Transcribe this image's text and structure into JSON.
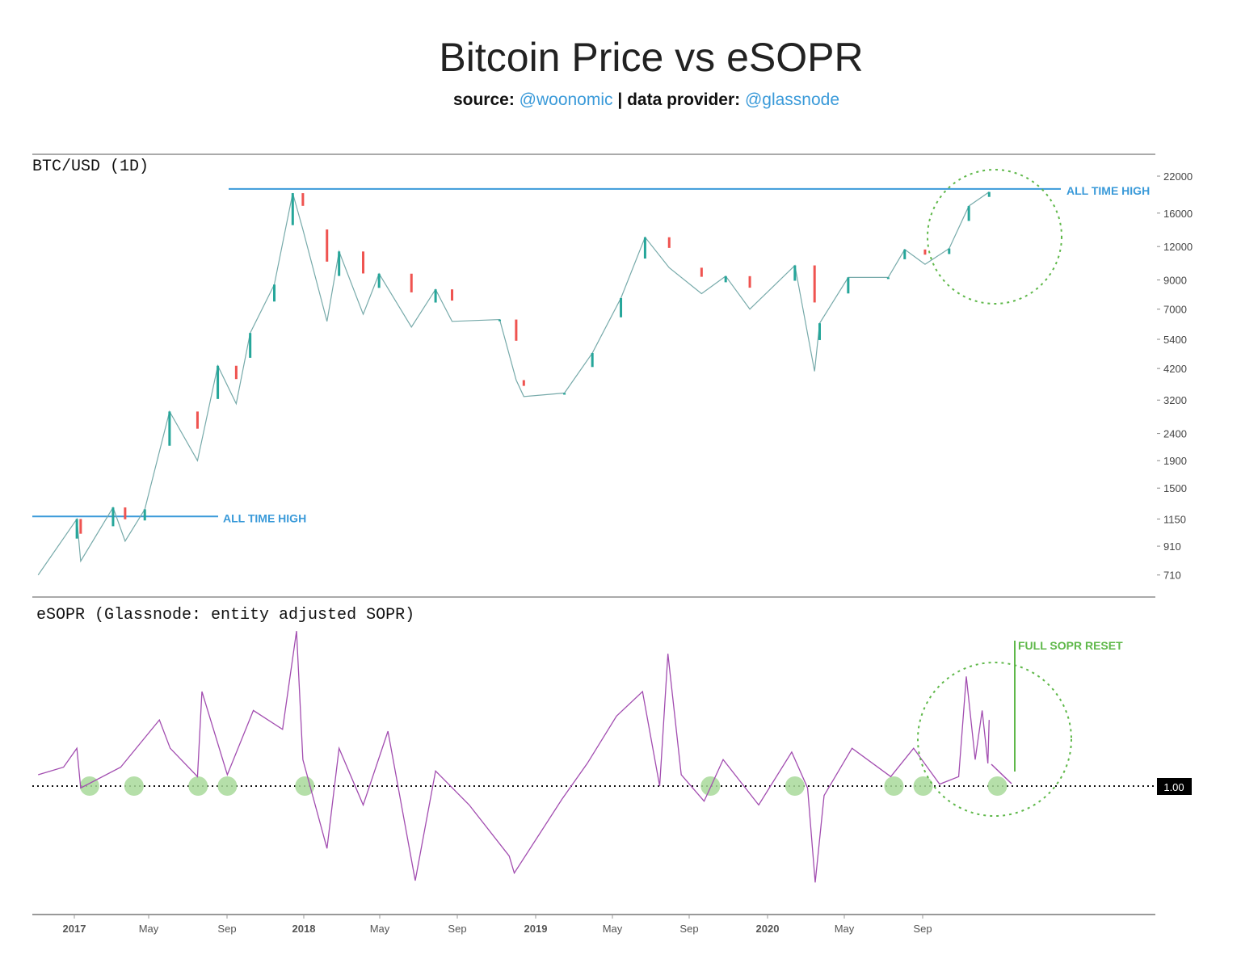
{
  "title": "Bitcoin Price vs eSOPR",
  "subtitle": {
    "source_label": "source:",
    "source_handle": "@woonomic",
    "separator": "|",
    "provider_label": "data provider:",
    "provider_handle": "@glassnode"
  },
  "colors": {
    "up": "#26a69a",
    "down": "#ef5350",
    "ath": "#3a9ad9",
    "esopr": "#a24db0",
    "annotation": "#5fb84a",
    "link": "#3a9ad9"
  },
  "chart_data": [
    {
      "type": "line",
      "title": "BTC/USD (1D)",
      "scale": "log",
      "ylim": [
        650,
        23000
      ],
      "y_ticks": [
        22000,
        16000,
        12000,
        9000,
        7000,
        5400,
        4200,
        3200,
        2400,
        1900,
        1500,
        1150,
        910,
        710
      ],
      "x_ticks": [
        "2017",
        "May",
        "Sep",
        "2018",
        "May",
        "Sep",
        "2019",
        "May",
        "Sep",
        "2020",
        "May",
        "Sep"
      ],
      "grid": false,
      "series": [
        {
          "x": [
            "2016-11-05",
            "2017-01-05",
            "2017-01-11",
            "2017-03-03",
            "2017-03-22",
            "2017-04-22",
            "2017-05-31",
            "2017-07-14",
            "2017-08-15",
            "2017-09-13",
            "2017-10-05",
            "2017-11-12",
            "2017-12-11",
            "2017-12-27",
            "2018-02-03",
            "2018-02-22",
            "2018-04-01",
            "2018-04-26",
            "2018-06-16",
            "2018-07-24",
            "2018-08-19",
            "2018-11-02",
            "2018-11-28",
            "2018-12-10",
            "2019-02-12",
            "2019-03-28",
            "2019-05-12",
            "2019-06-19",
            "2019-07-27",
            "2019-09-16",
            "2019-10-24",
            "2019-12-01",
            "2020-02-10",
            "2020-03-12",
            "2020-03-20",
            "2020-05-04",
            "2020-07-06",
            "2020-08-01",
            "2020-09-02",
            "2020-10-10",
            "2020-11-10",
            "2020-12-12"
          ],
          "y": [
            710,
            1150,
            800,
            1270,
            950,
            1250,
            2900,
            1900,
            4300,
            3100,
            5700,
            8650,
            19000,
            13900,
            6300,
            11500,
            6700,
            9500,
            6000,
            8300,
            6300,
            6400,
            3800,
            3300,
            3400,
            4800,
            7700,
            13000,
            10000,
            8000,
            9300,
            7000,
            10200,
            4100,
            6200,
            9200,
            9200,
            11700,
            10300,
            11800,
            17000,
            19200
          ]
        }
      ],
      "annotations": [
        {
          "label": "ALL TIME HIGH",
          "value": 19700
        },
        {
          "label": "ALL TIME HIGH",
          "value": 1175
        }
      ]
    },
    {
      "type": "line",
      "title": "eSOPR (Glassnode: entity adjusted SOPR)",
      "reference_line": {
        "value": 1.0,
        "label": "1.00"
      },
      "series": [
        {
          "x": [
            "2016-11-05",
            "2016-12-15",
            "2017-01-05",
            "2017-01-11",
            "2017-03-15",
            "2017-05-15",
            "2017-06-01",
            "2017-07-14",
            "2017-07-21",
            "2017-08-30",
            "2017-10-10",
            "2017-11-25",
            "2017-12-17",
            "2017-12-27",
            "2018-02-03",
            "2018-02-22",
            "2018-04-01",
            "2018-05-10",
            "2018-06-22",
            "2018-07-24",
            "2018-09-15",
            "2018-11-17",
            "2018-11-25",
            "2019-02-08",
            "2019-03-20",
            "2019-05-05",
            "2019-06-15",
            "2019-07-12",
            "2019-07-25",
            "2019-08-15",
            "2019-09-20",
            "2019-10-20",
            "2019-12-15",
            "2020-02-05",
            "2020-03-01",
            "2020-03-13",
            "2020-03-27",
            "2020-05-10",
            "2020-07-10",
            "2020-08-15",
            "2020-09-25",
            "2020-10-25",
            "2020-11-06",
            "2020-11-20",
            "2020-12-01",
            "2020-12-10",
            "2020-12-12"
          ],
          "y": [
            1.006,
            1.01,
            1.02,
            0.999,
            1.01,
            1.035,
            1.02,
            1.005,
            1.05,
            1.006,
            1.04,
            1.03,
            1.082,
            1.014,
            0.967,
            1.02,
            0.99,
            1.029,
            0.95,
            1.008,
            0.99,
            0.963,
            0.954,
            0.993,
            1.012,
            1.037,
            1.05,
            1.0,
            1.07,
            1.006,
            0.992,
            1.014,
            0.99,
            1.018,
            0.999,
            0.949,
            0.995,
            1.02,
            1.005,
            1.02,
            1.001,
            1.005,
            1.058,
            1.014,
            1.04,
            1.012,
            1.035
          ]
        }
      ],
      "reset_markers": [
        "2017-01-25",
        "2017-04-05",
        "2017-07-15",
        "2017-08-30",
        "2017-12-30",
        "2019-09-30",
        "2020-02-10",
        "2020-07-15",
        "2020-08-30",
        "2020-12-25"
      ],
      "annotations": [
        {
          "label": "FULL SOPR RESET"
        }
      ]
    }
  ]
}
